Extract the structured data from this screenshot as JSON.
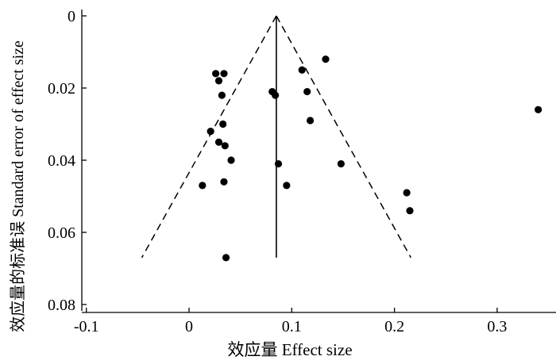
{
  "chart_data": {
    "type": "scatter",
    "title": "",
    "xlabel": "效应量 Effect size",
    "ylabel": "效应量的标准误 Standard error of effect size",
    "xlim": [
      -0.1,
      0.35
    ],
    "ylim": [
      0,
      0.08
    ],
    "y_inverted": true,
    "x_ticks": [
      -0.1,
      0,
      0.1,
      0.2,
      0.3
    ],
    "x_tick_labels": [
      "-0.1",
      "0",
      "0.1",
      "0.2",
      "0.3"
    ],
    "y_ticks": [
      0,
      0.02,
      0.04,
      0.06,
      0.08
    ],
    "y_tick_labels": [
      "0",
      "0.02",
      "0.04",
      "0.06",
      "0.08"
    ],
    "grid": false,
    "legend": "none",
    "pooled_effect": 0.085,
    "funnel": {
      "apex": [
        0.085,
        0.0
      ],
      "left_end": [
        -0.046,
        0.067
      ],
      "right_end": [
        0.216,
        0.067
      ],
      "center_line": {
        "x": 0.085,
        "y_range": [
          0.0,
          0.067
        ]
      }
    },
    "points": [
      {
        "x": 0.026,
        "y": 0.016
      },
      {
        "x": 0.034,
        "y": 0.016
      },
      {
        "x": 0.029,
        "y": 0.018
      },
      {
        "x": 0.032,
        "y": 0.022
      },
      {
        "x": 0.033,
        "y": 0.03
      },
      {
        "x": 0.021,
        "y": 0.032
      },
      {
        "x": 0.029,
        "y": 0.035
      },
      {
        "x": 0.035,
        "y": 0.036
      },
      {
        "x": 0.041,
        "y": 0.04
      },
      {
        "x": 0.013,
        "y": 0.047
      },
      {
        "x": 0.034,
        "y": 0.046
      },
      {
        "x": 0.036,
        "y": 0.067
      },
      {
        "x": 0.081,
        "y": 0.021
      },
      {
        "x": 0.084,
        "y": 0.022
      },
      {
        "x": 0.087,
        "y": 0.041
      },
      {
        "x": 0.095,
        "y": 0.047
      },
      {
        "x": 0.11,
        "y": 0.015
      },
      {
        "x": 0.115,
        "y": 0.021
      },
      {
        "x": 0.118,
        "y": 0.029
      },
      {
        "x": 0.133,
        "y": 0.012
      },
      {
        "x": 0.148,
        "y": 0.041
      },
      {
        "x": 0.212,
        "y": 0.049
      },
      {
        "x": 0.215,
        "y": 0.054
      },
      {
        "x": 0.34,
        "y": 0.026
      }
    ]
  }
}
